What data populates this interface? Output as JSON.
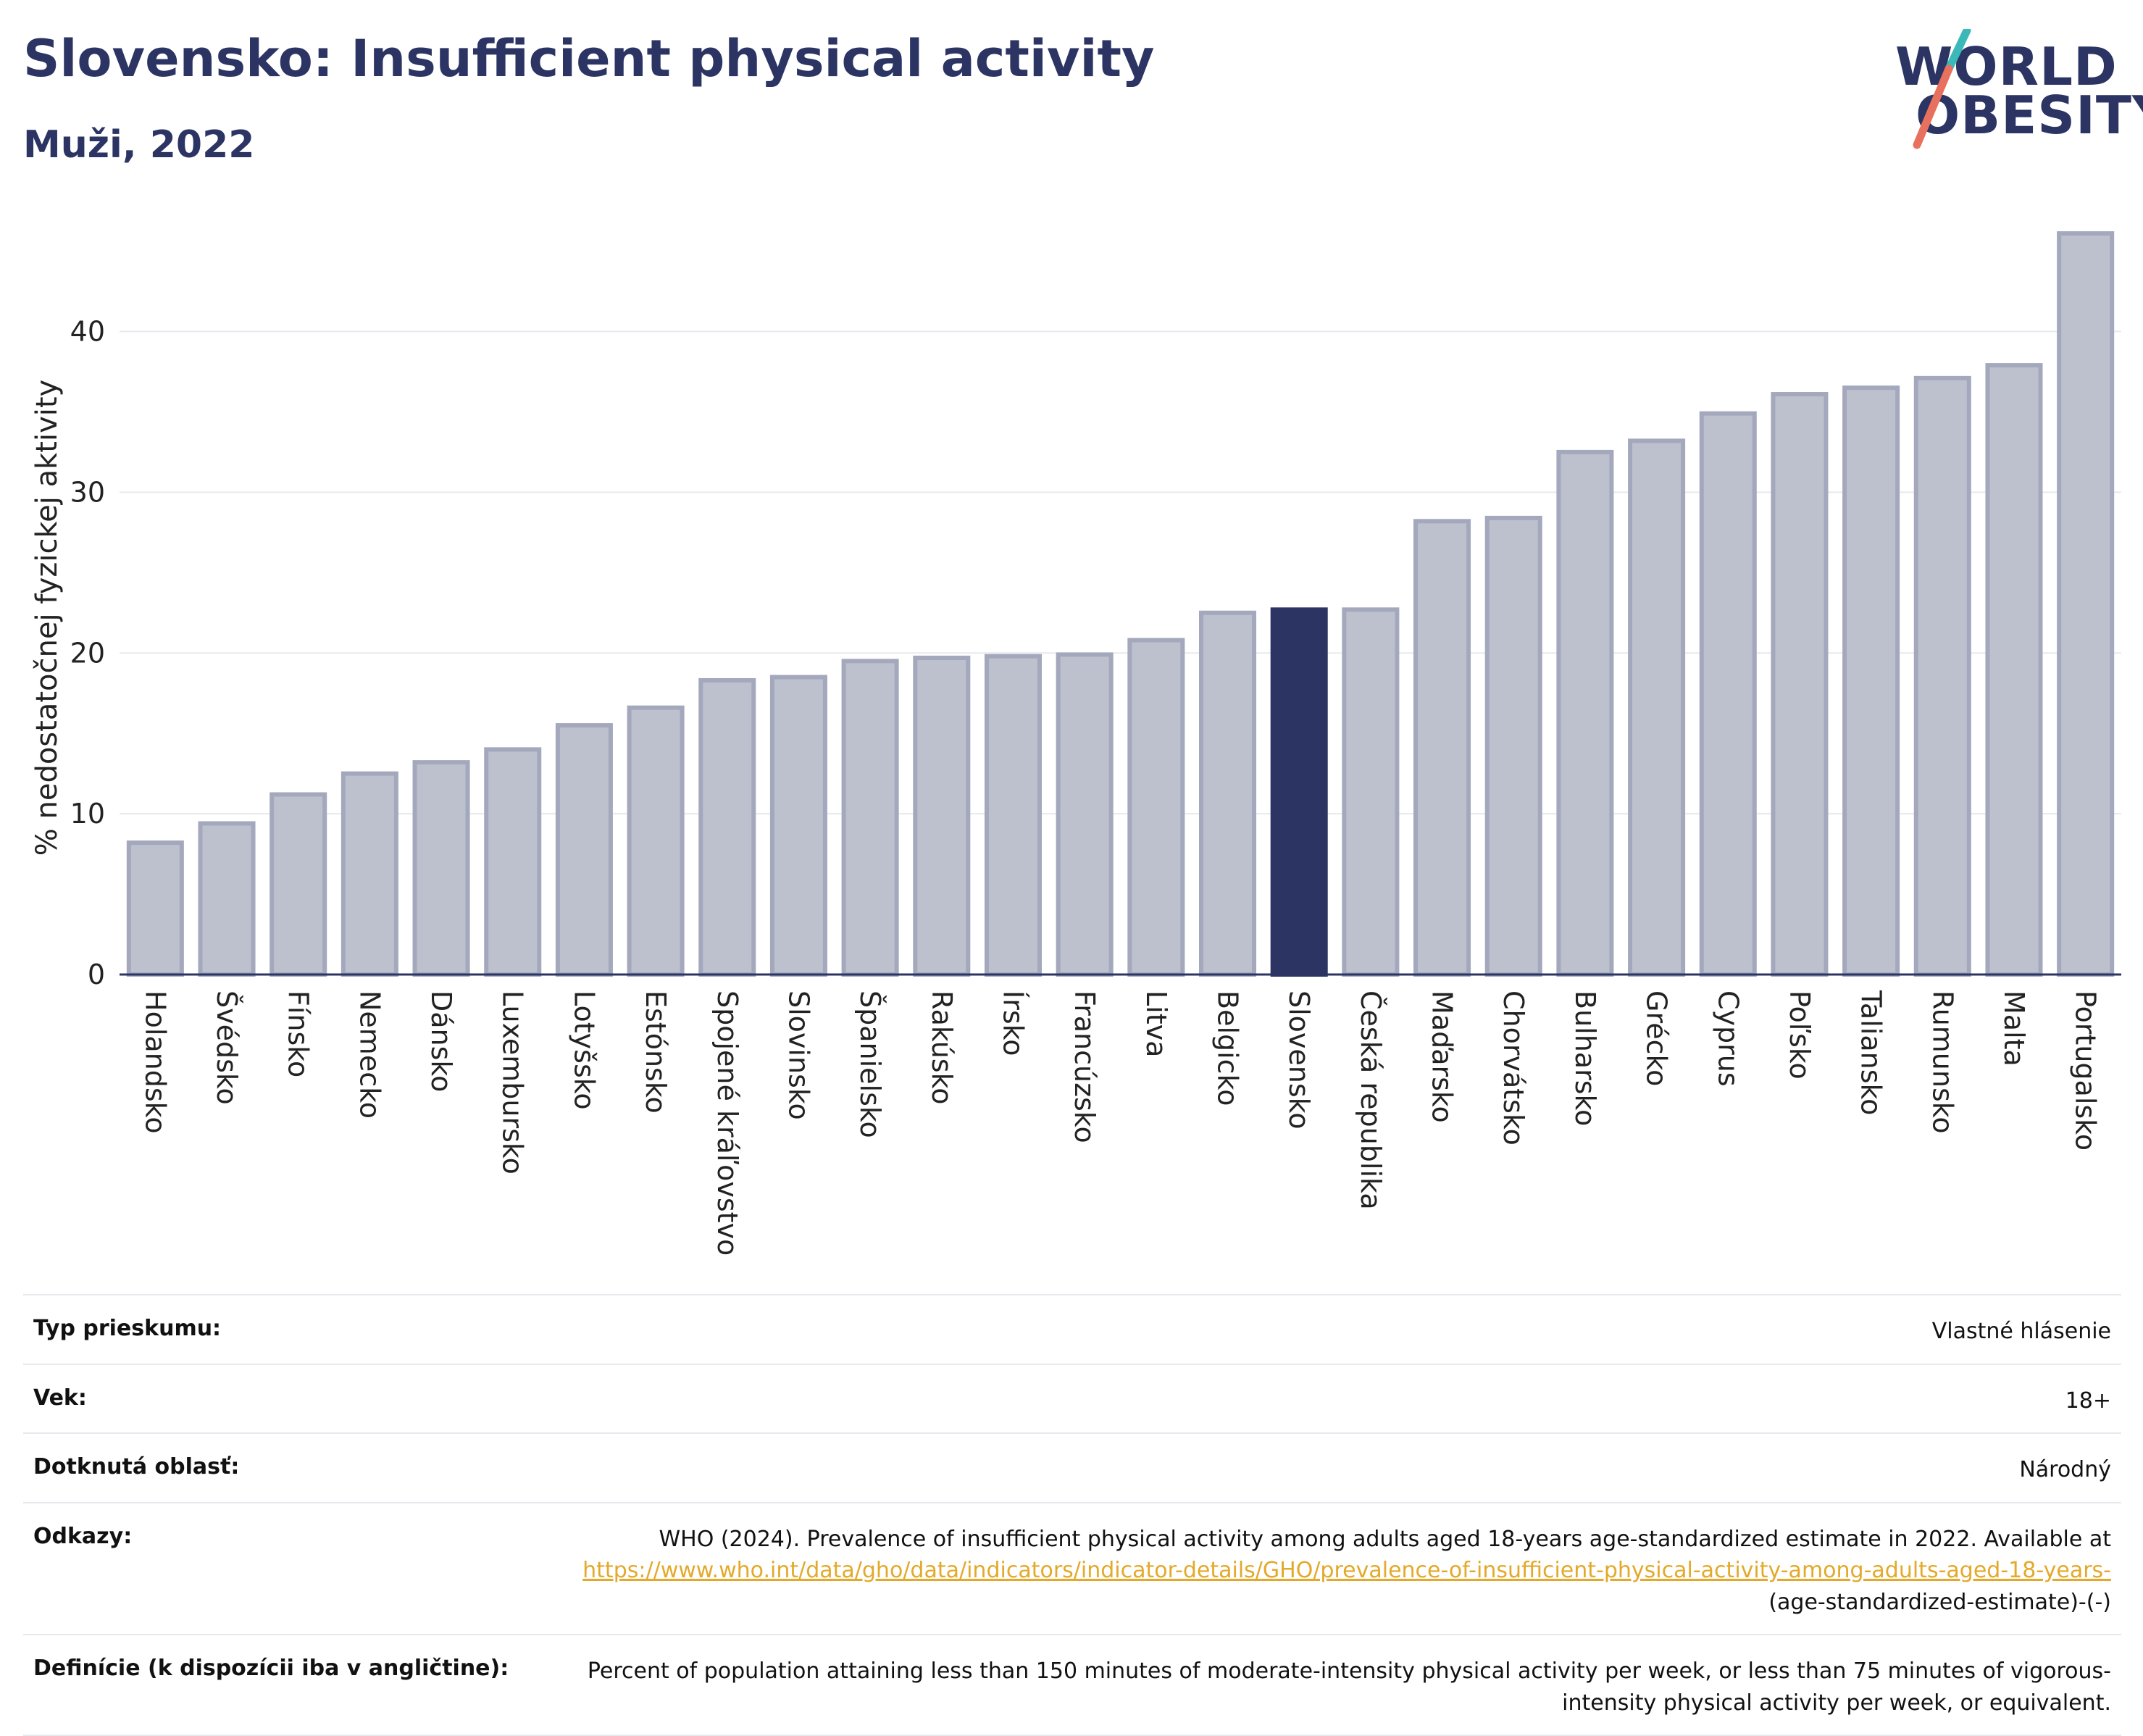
{
  "header": {
    "title": "Slovensko: Insufficient physical activity",
    "subtitle": "Muži, 2022"
  },
  "logo": {
    "line1": "WORLD",
    "line2": "OBESITY",
    "accent_colors": [
      "#3bb8b8",
      "#e8705e"
    ]
  },
  "chart_data": {
    "type": "bar",
    "title": "",
    "xlabel": "",
    "ylabel": "% nedostatočnej fyzickej aktivity",
    "ylim": [
      0,
      48
    ],
    "yticks": [
      0,
      10,
      20,
      30,
      40
    ],
    "grid": true,
    "highlight": "Slovensko",
    "colors": {
      "bar": "#bdc0cd",
      "bar_edge": "#a3a8bd",
      "highlight": "#2b3463",
      "grid": "#e7e9ee",
      "axis": "#2b3463"
    },
    "categories": [
      "Holandsko",
      "Švédsko",
      "Fínsko",
      "Nemecko",
      "Dánsko",
      "Luxembursko",
      "Lotyšsko",
      "Estónsko",
      "Spojené kráľovstvo",
      "Slovinsko",
      "Španielsko",
      "Rakúsko",
      "Írsko",
      "Francúzsko",
      "Litva",
      "Belgicko",
      "Slovensko",
      "Česká republika",
      "Maďarsko",
      "Chorvátsko",
      "Bulharsko",
      "Grécko",
      "Cyprus",
      "Poľsko",
      "Taliansko",
      "Rumunsko",
      "Malta",
      "Portugalsko"
    ],
    "values": [
      8.2,
      9.4,
      11.2,
      12.5,
      13.2,
      14.0,
      15.5,
      16.6,
      18.3,
      18.5,
      19.5,
      19.7,
      19.8,
      19.9,
      20.8,
      22.5,
      22.7,
      22.7,
      28.2,
      28.4,
      32.5,
      33.2,
      34.9,
      36.1,
      36.5,
      37.1,
      37.9,
      46.1
    ]
  },
  "details": [
    {
      "key": "Typ prieskumu:",
      "value": "Vlastné hlásenie"
    },
    {
      "key": "Vek:",
      "value": "18+"
    },
    {
      "key": "Dotknutá oblasť:",
      "value": "Národný"
    },
    {
      "key": "Odkazy:",
      "value": "WHO (2024). Prevalence of insufficient physical activity among adults aged 18-years age-standardized estimate in 2022. Available at",
      "link": "https://www.who.int/data/gho/data/indicators/indicator-details/GHO/prevalence-of-insufficient-physical-activity-among-adults-aged-18-years-",
      "value_after": "(age-standardized-estimate)-(-)"
    },
    {
      "key": "Definície (k dispozícii iba v angličtine):",
      "value": "Percent of population attaining less than 150 minutes of moderate-intensity physical activity per week, or less than 75 minutes of vigorous-intensity physical activity per week, or equivalent."
    }
  ]
}
